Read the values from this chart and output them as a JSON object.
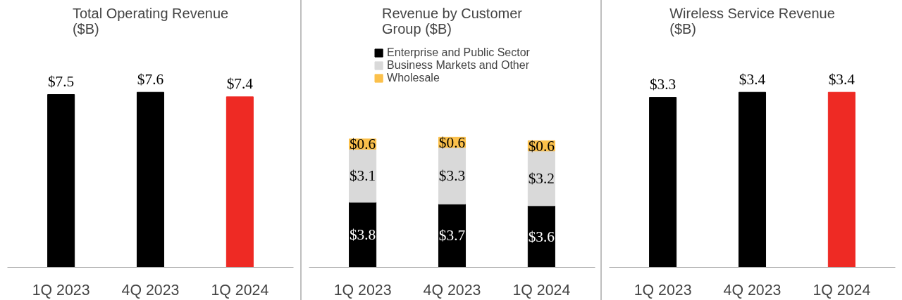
{
  "chart_data": [
    {
      "type": "bar",
      "title": "Total Operating Revenue ($B)",
      "categories": [
        "1Q 2023",
        "4Q 2023",
        "1Q 2024"
      ],
      "values": [
        7.5,
        7.6,
        7.4
      ],
      "colors": [
        "#000000",
        "#000000",
        "#ee2a24"
      ],
      "value_labels": [
        "$7.5",
        "$7.6",
        "$7.4"
      ]
    },
    {
      "type": "bar",
      "title": "Revenue by Customer Group ($B)",
      "categories": [
        "1Q 2023",
        "4Q 2023",
        "1Q 2024"
      ],
      "stacked": true,
      "legend": "top",
      "series": [
        {
          "name": "Enterprise and Public Sector",
          "color": "#000000",
          "values": [
            3.8,
            3.7,
            3.6
          ],
          "value_labels": [
            "$3.8",
            "$3.7",
            "$3.6"
          ]
        },
        {
          "name": "Business Markets and Other",
          "color": "#d9d9d9",
          "values": [
            3.1,
            3.3,
            3.2
          ],
          "value_labels": [
            "$3.1",
            "$3.3",
            "$3.2"
          ]
        },
        {
          "name": "Wholesale",
          "color": "#fbc04b",
          "values": [
            0.6,
            0.6,
            0.6
          ],
          "value_labels": [
            "$0.6",
            "$0.6",
            "$0.6"
          ]
        }
      ]
    },
    {
      "type": "bar",
      "title": "Wireless Service Revenue ($B)",
      "categories": [
        "1Q 2023",
        "4Q 2023",
        "1Q 2024"
      ],
      "values": [
        3.3,
        3.4,
        3.4
      ],
      "colors": [
        "#000000",
        "#000000",
        "#ee2a24"
      ],
      "value_labels": [
        "$3.3",
        "$3.4",
        "$3.4"
      ]
    }
  ]
}
